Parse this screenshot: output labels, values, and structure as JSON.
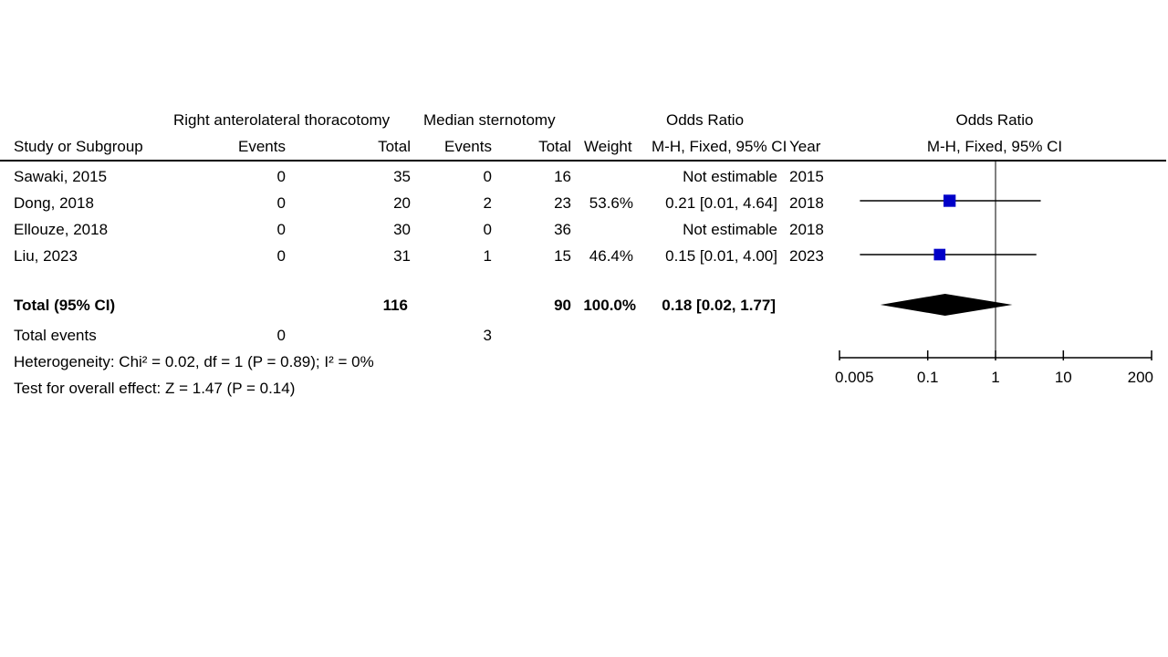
{
  "headers": {
    "group1": "Right anterolateral thoracotomy",
    "group2": "Median sternotomy",
    "or_table": "Odds Ratio",
    "or_plot": "Odds Ratio",
    "study": "Study or Subgroup",
    "events1": "Events",
    "total1": "Total",
    "events2": "Events",
    "total2": "Total",
    "weight": "Weight",
    "method_table": "M-H, Fixed, 95% CI",
    "year": "Year",
    "method_plot": "M-H, Fixed, 95% CI"
  },
  "studies": [
    {
      "name": "Sawaki, 2015",
      "events1": "0",
      "total1": "35",
      "events2": "0",
      "total2": "16",
      "weight": "",
      "ci": "Not estimable",
      "year": "2015"
    },
    {
      "name": "Dong, 2018",
      "events1": "0",
      "total1": "20",
      "events2": "2",
      "total2": "23",
      "weight": "53.6%",
      "ci": "0.21 [0.01, 4.64]",
      "year": "2018"
    },
    {
      "name": "Ellouze, 2018",
      "events1": "0",
      "total1": "30",
      "events2": "0",
      "total2": "36",
      "weight": "",
      "ci": "Not estimable",
      "year": "2018"
    },
    {
      "name": "Liu, 2023",
      "events1": "0",
      "total1": "31",
      "events2": "1",
      "total2": "15",
      "weight": "46.4%",
      "ci": "0.15 [0.01, 4.00]",
      "year": "2023"
    }
  ],
  "total": {
    "label": "Total (95% CI)",
    "total1": "116",
    "total2": "90",
    "weight": "100.0%",
    "ci": "0.18 [0.02, 1.77]"
  },
  "total_events": {
    "label": "Total events",
    "events1": "0",
    "events2": "3"
  },
  "heterogeneity": "Heterogeneity: Chi² = 0.02, df = 1 (P = 0.89); I² = 0%",
  "overall_effect": "Test for overall effect: Z = 1.47 (P = 0.14)",
  "colors": {
    "marker": "#0000c8",
    "diamond": "#000000",
    "line": "#000000"
  },
  "chart_data": {
    "type": "forest",
    "scale": "log",
    "xlim": [
      0.005,
      200
    ],
    "ticks": [
      0.005,
      0.1,
      1,
      10,
      200
    ],
    "tick_labels": [
      "0.005",
      "0.1",
      "1",
      "10",
      "200"
    ],
    "reference": 1,
    "points": [
      {
        "study": "Dong, 2018",
        "or": 0.21,
        "lower": 0.01,
        "upper": 4.64,
        "weight": 53.6
      },
      {
        "study": "Liu, 2023",
        "or": 0.15,
        "lower": 0.01,
        "upper": 4.0,
        "weight": 46.4
      }
    ],
    "pooled": {
      "or": 0.18,
      "lower": 0.02,
      "upper": 1.77
    }
  }
}
